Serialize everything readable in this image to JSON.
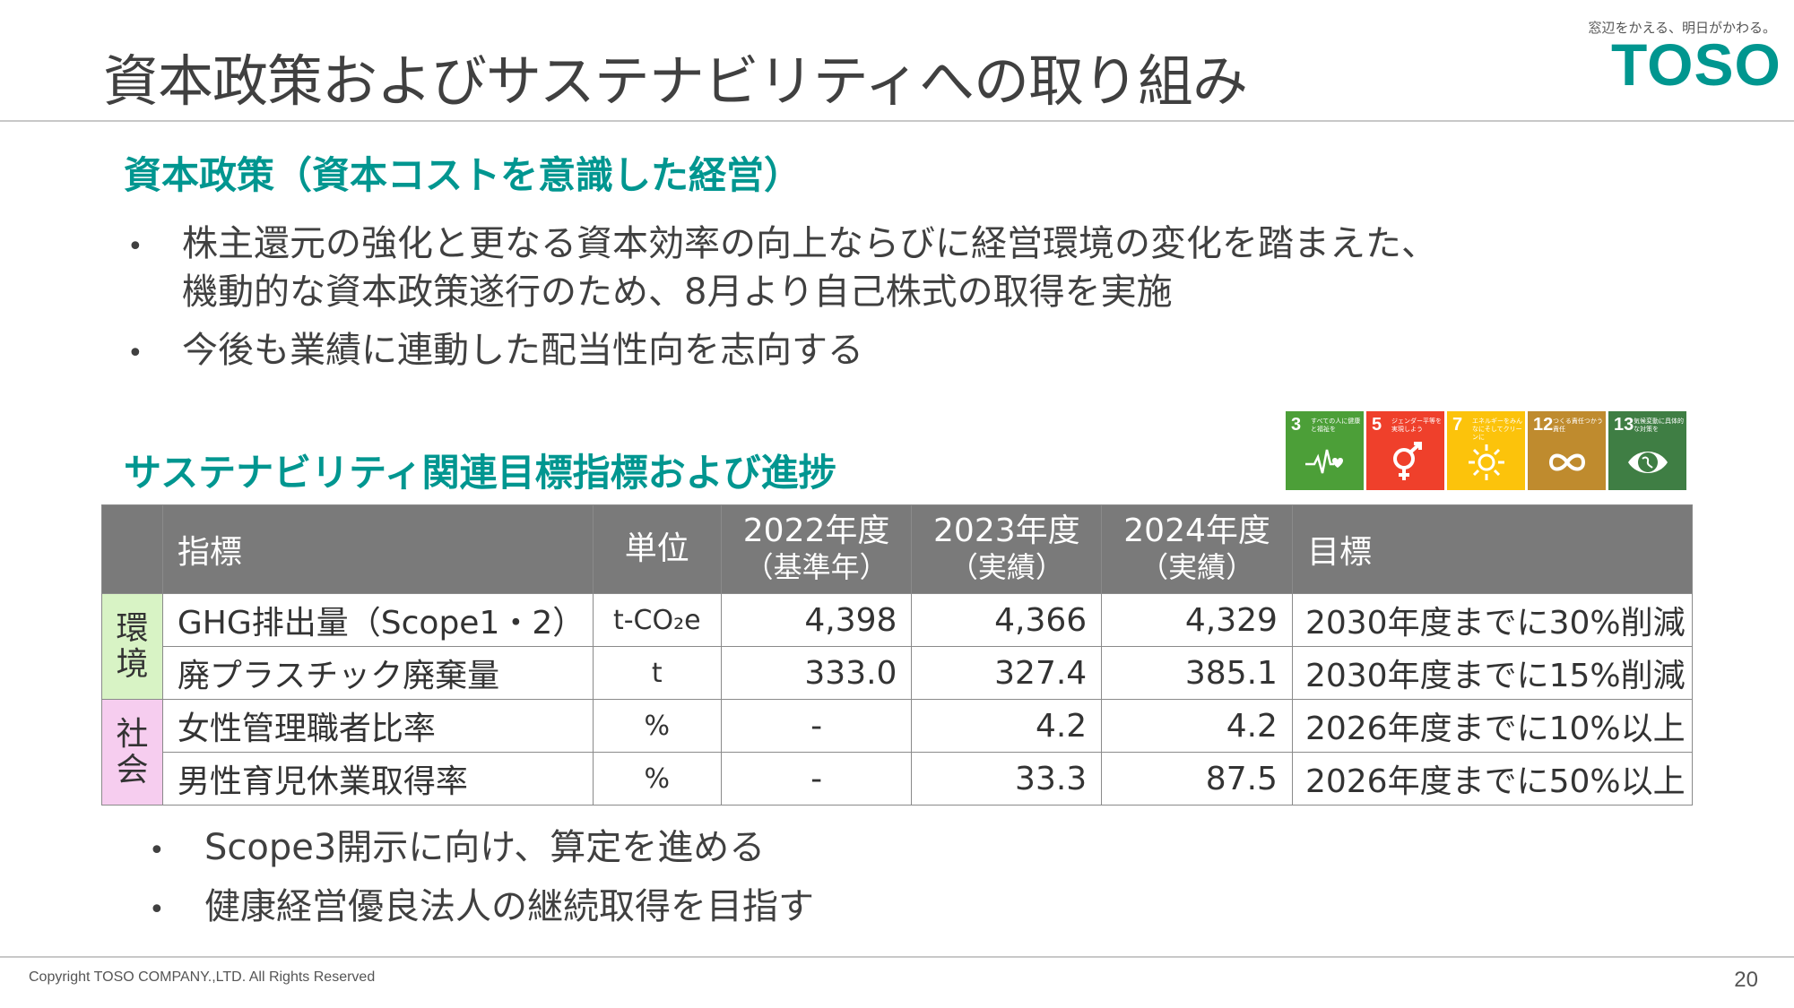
{
  "header": {
    "title": "資本政策およびサステナビリティへの取り組み",
    "tagline": "窓辺をかえる、明日がかわる。",
    "logo_text": "TOSO",
    "brand_color": "#00968f"
  },
  "capital_policy": {
    "heading": "資本政策（資本コストを意識した経営）",
    "bullets": [
      "株主還元の強化と更なる資本効率の向上ならびに経営環境の変化を踏まえた、",
      "機動的な資本政策遂行のため、8月より自己株式の取得を実施",
      "今後も業績に連動した配当性向を志向する"
    ]
  },
  "sustainability": {
    "heading": "サステナビリティ関連目標指標および進捗",
    "sdg_icons": [
      {
        "number": "3",
        "text": "すべての人に健康と福祉を",
        "color": "#4c9f38",
        "icon": "heartbeat-icon"
      },
      {
        "number": "5",
        "text": "ジェンダー平等を実現しよう",
        "color": "#ef402b",
        "icon": "gender-equality-icon"
      },
      {
        "number": "7",
        "text": "エネルギーをみんなにそしてクリーンに",
        "color": "#fcc30b",
        "icon": "sun-energy-icon"
      },
      {
        "number": "12",
        "text": "つくる責任つかう責任",
        "color": "#bf8b2e",
        "icon": "infinity-icon"
      },
      {
        "number": "13",
        "text": "気候変動に具体的な対策を",
        "color": "#3f7e44",
        "icon": "earth-eye-icon"
      }
    ],
    "table": {
      "headers": {
        "indicator": "指標",
        "unit": "単位",
        "y2022": "2022年度",
        "y2022_sub": "（基準年）",
        "y2023": "2023年度",
        "y2023_sub": "（実績）",
        "y2024": "2024年度",
        "y2024_sub": "（実績）",
        "goal": "目標"
      },
      "categories": {
        "env_line1": "環",
        "env_line2": "境",
        "soc_line1": "社",
        "soc_line2": "会",
        "env_color": "#d8f3c5",
        "soc_color": "#f6cdef"
      },
      "rows": [
        {
          "indicator": "GHG排出量（Scope1・2）",
          "unit": "t-CO₂e",
          "y2022": "4,398",
          "y2023": "4,366",
          "y2024": "4,329",
          "goal": "2030年度までに30%削減"
        },
        {
          "indicator": "廃プラスチック廃棄量",
          "unit": "t",
          "y2022": "333.0",
          "y2023": "327.4",
          "y2024": "385.1",
          "goal": "2030年度までに15%削減"
        },
        {
          "indicator": "女性管理職者比率",
          "unit": "%",
          "y2022": "-",
          "y2023": "4.2",
          "y2024": "4.2",
          "goal": "2026年度までに10%以上"
        },
        {
          "indicator": "男性育児休業取得率",
          "unit": "%",
          "y2022": "-",
          "y2023": "33.3",
          "y2024": "87.5",
          "goal": "2026年度までに50%以上"
        }
      ]
    },
    "bullets": [
      "Scope3開示に向け、算定を進める",
      "健康経営優良法人の継続取得を目指す"
    ]
  },
  "footer": {
    "copyright": "Copyright TOSO COMPANY.,LTD. All Rights Reserved",
    "page_number": "20"
  }
}
